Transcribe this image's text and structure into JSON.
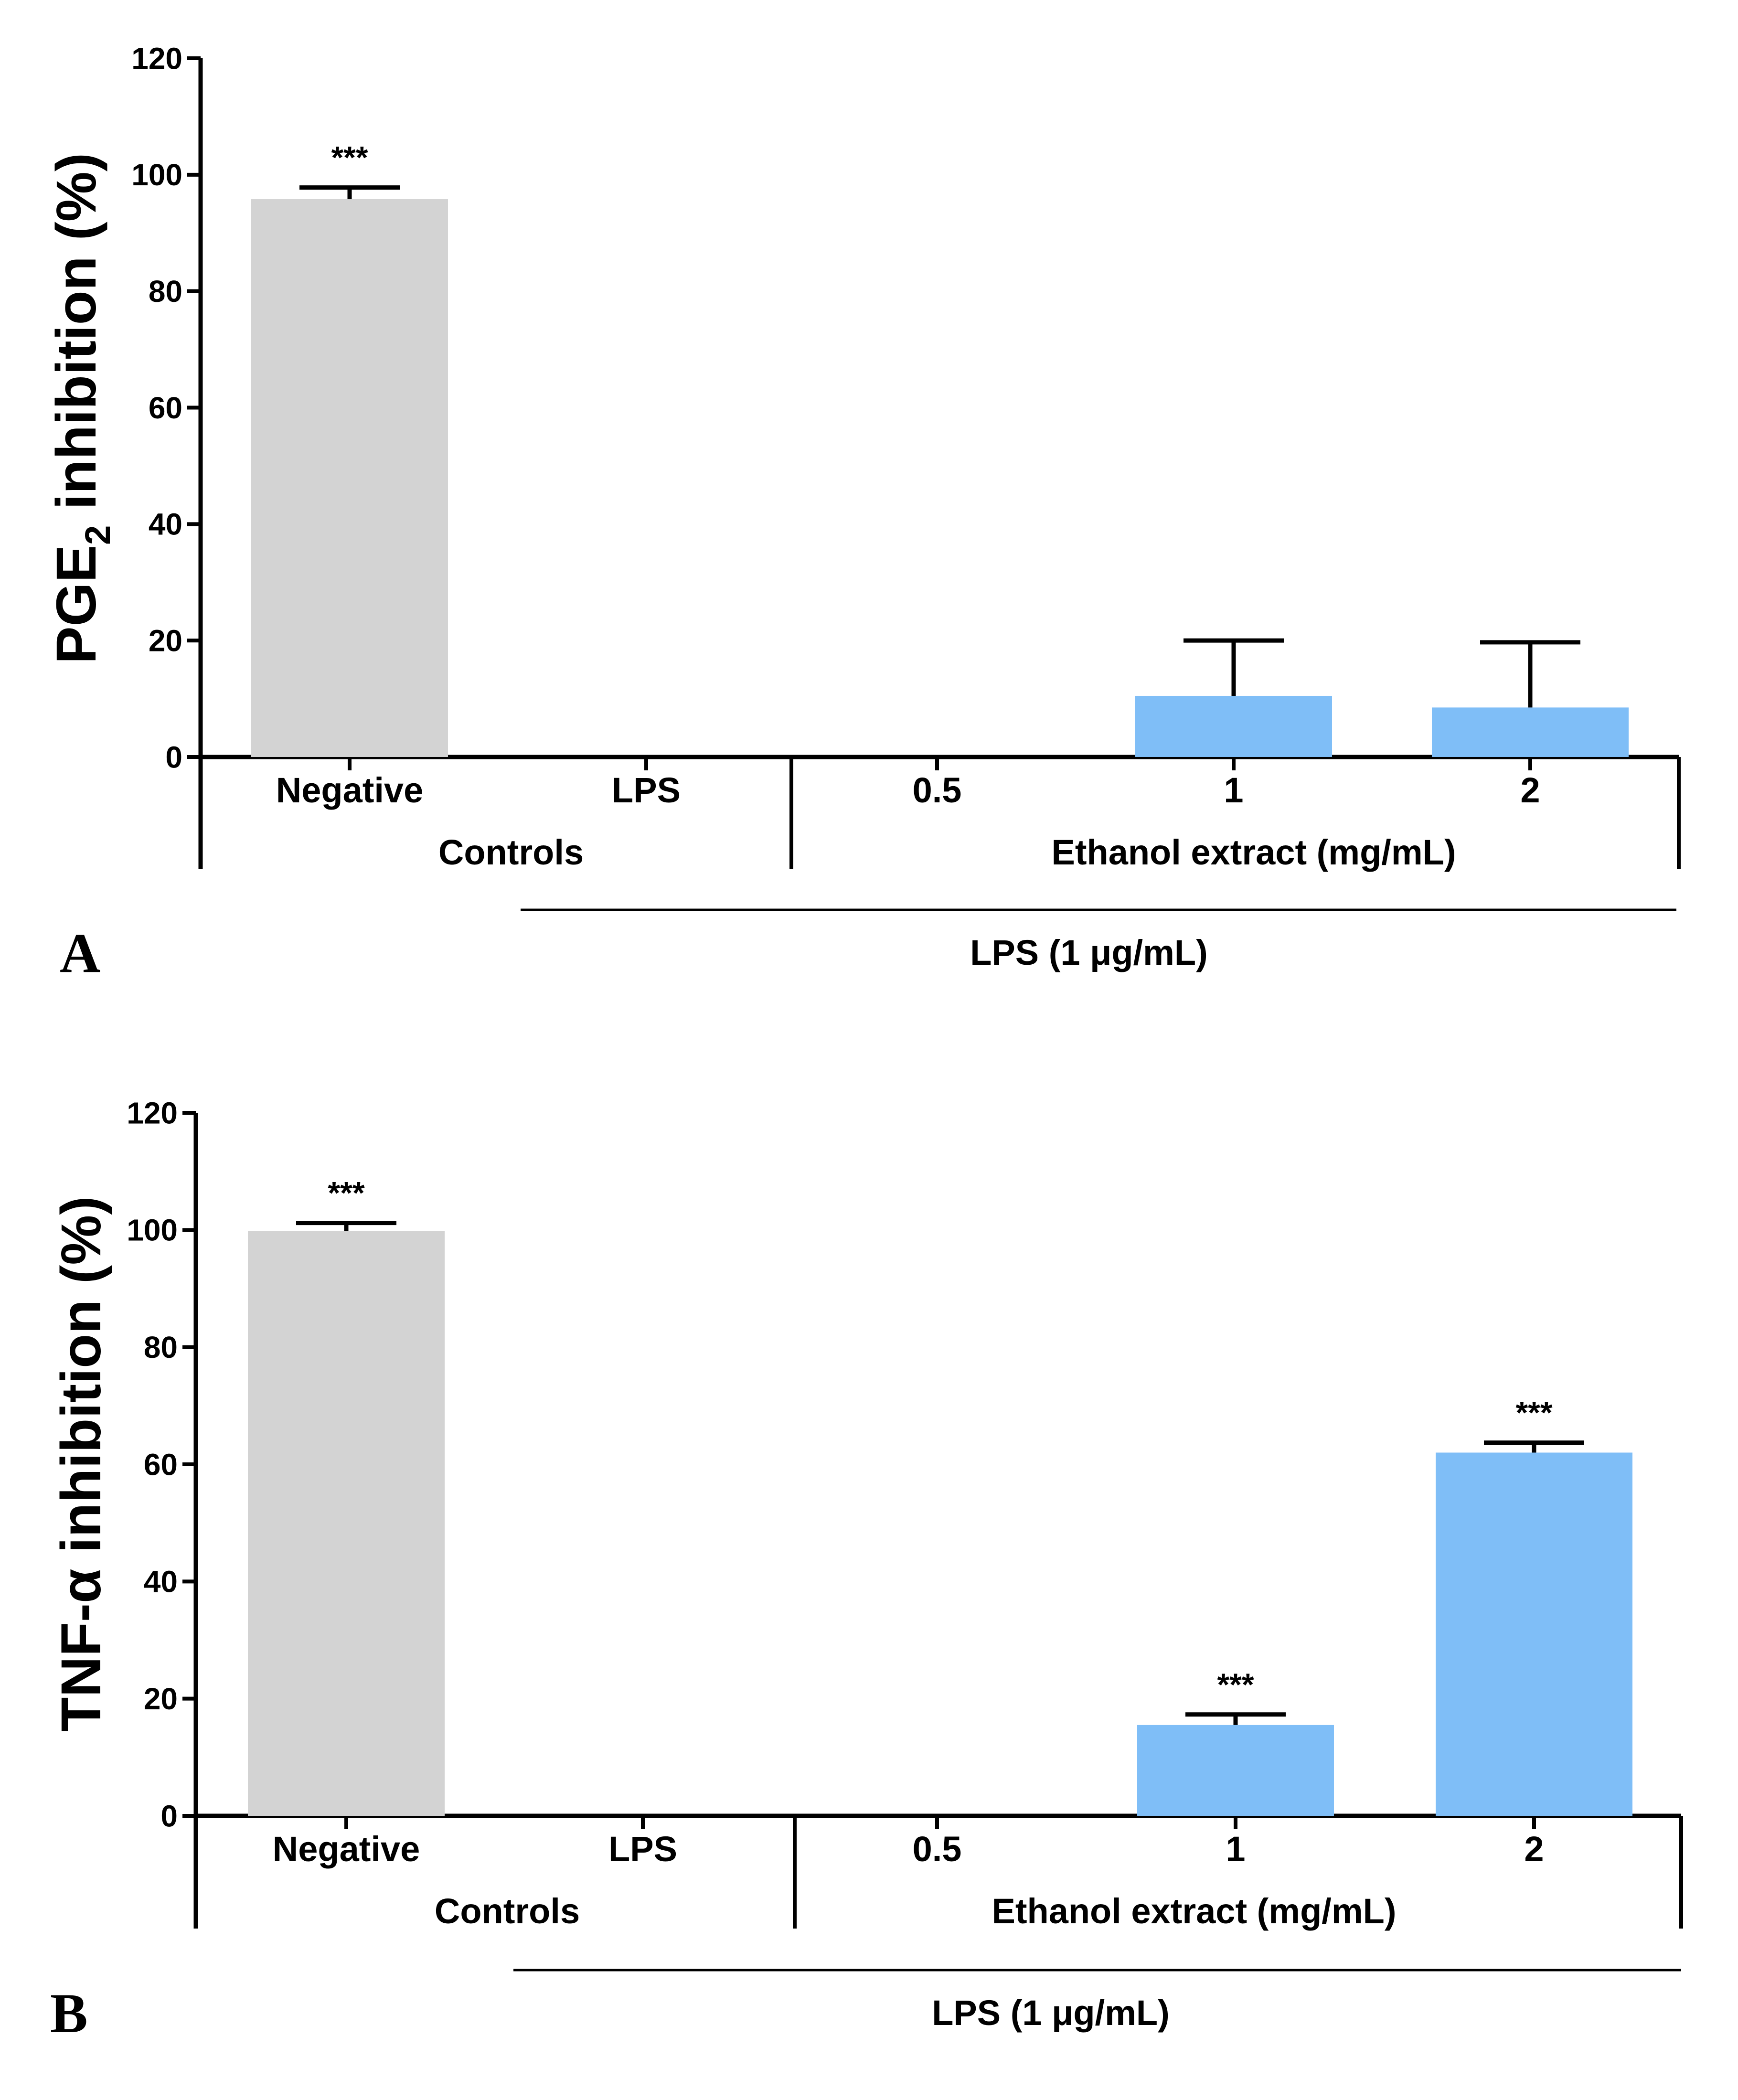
{
  "colors": {
    "control_bar": "#d3d3d3",
    "extract_bar": "#7fbef7",
    "axis": "#000000"
  },
  "chart_data": [
    {
      "panel_label": "A",
      "type": "bar",
      "ylabel_main": "PGE",
      "ylabel_sub": "2",
      "ylabel_rest": " inhibition (%)",
      "ylim": [
        0,
        120
      ],
      "yticks": [
        "0",
        "20",
        "40",
        "60",
        "80",
        "100",
        "120"
      ],
      "categories": [
        "Negative",
        "LPS",
        "0.5",
        "1",
        "2"
      ],
      "values": [
        95.8,
        0,
        0,
        10.5,
        8.5
      ],
      "errors": [
        2.0,
        0,
        0,
        9.5,
        11.2
      ],
      "bar_types": [
        "control",
        "control",
        "extract",
        "extract",
        "extract"
      ],
      "significance": [
        "***",
        "",
        "",
        "",
        ""
      ],
      "groups": [
        {
          "label": "Controls",
          "span": [
            0,
            1
          ]
        },
        {
          "label": "Ethanol extract (mg/mL)",
          "span": [
            2,
            4
          ]
        }
      ],
      "treatment_label": "LPS (1 μg/mL)",
      "treatment_span": [
        1,
        4
      ]
    },
    {
      "panel_label": "B",
      "type": "bar",
      "ylabel_main": "TNF-α inhibition (%)",
      "ylabel_sub": "",
      "ylabel_rest": "",
      "ylim": [
        0,
        120
      ],
      "yticks": [
        "0",
        "20",
        "40",
        "60",
        "80",
        "100",
        "120"
      ],
      "categories": [
        "Negative",
        "LPS",
        "0.5",
        "1",
        "2"
      ],
      "values": [
        99.8,
        0,
        0,
        15.5,
        62.0
      ],
      "errors": [
        1.4,
        0,
        0,
        1.8,
        1.7
      ],
      "bar_types": [
        "control",
        "control",
        "extract",
        "extract",
        "extract"
      ],
      "significance": [
        "***",
        "",
        "",
        "***",
        "***"
      ],
      "groups": [
        {
          "label": "Controls",
          "span": [
            0,
            1
          ]
        },
        {
          "label": "Ethanol extract (mg/mL)",
          "span": [
            2,
            4
          ]
        }
      ],
      "treatment_label": "LPS (1 μg/mL)",
      "treatment_span": [
        1,
        4
      ]
    }
  ]
}
